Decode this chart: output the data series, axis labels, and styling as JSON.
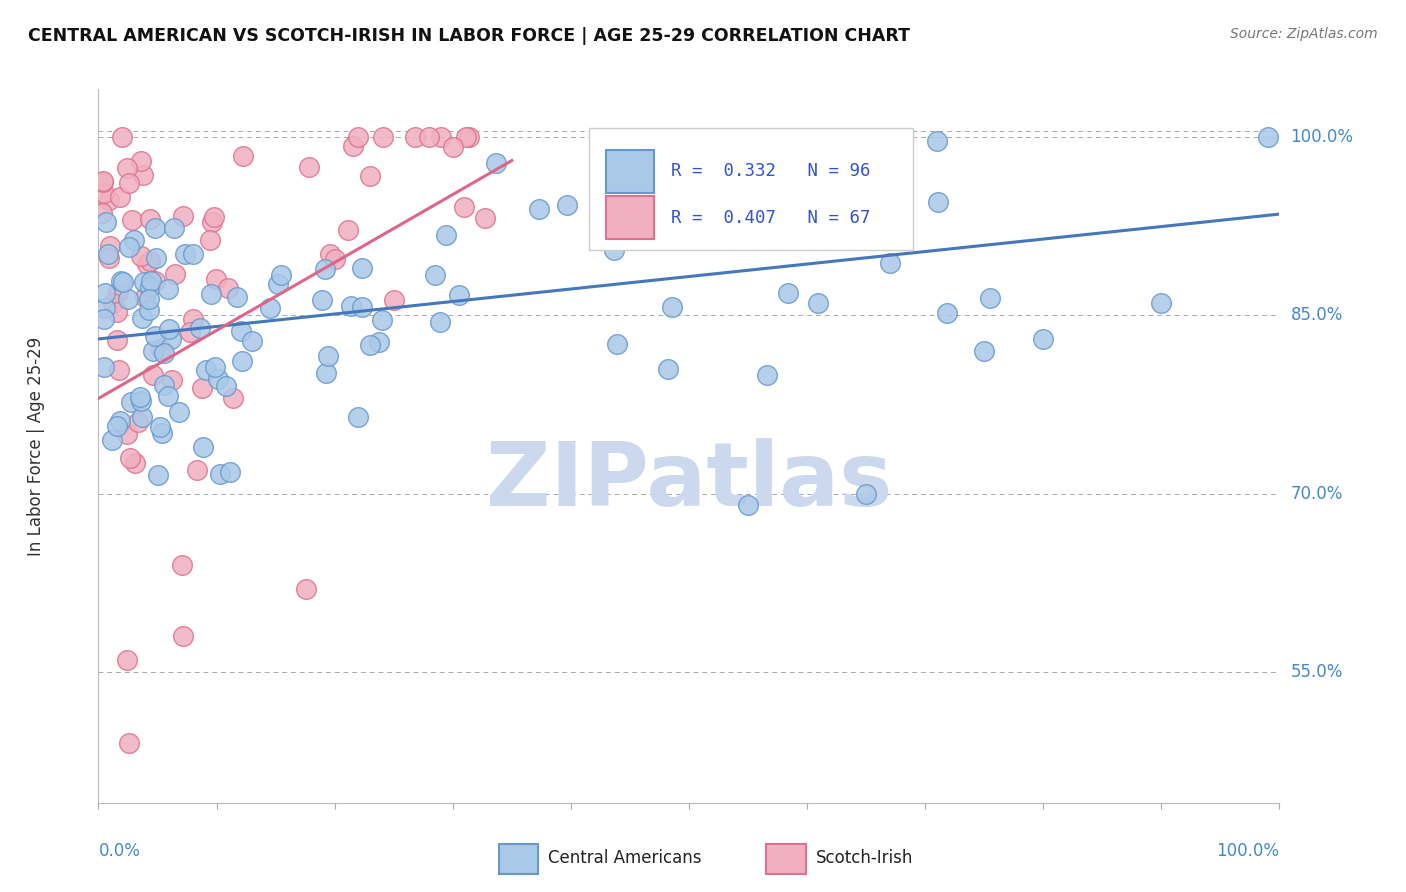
{
  "title": "CENTRAL AMERICAN VS SCOTCH-IRISH IN LABOR FORCE | AGE 25-29 CORRELATION CHART",
  "source": "Source: ZipAtlas.com",
  "ylabel": "In Labor Force | Age 25-29",
  "right_ytick_values": [
    55.0,
    70.0,
    85.0,
    100.0
  ],
  "xlim": [
    0.0,
    100.0
  ],
  "ylim": [
    44.0,
    104.0
  ],
  "blue_R": 0.332,
  "blue_N": 96,
  "pink_R": 0.407,
  "pink_N": 67,
  "blue_color": "#aac8e8",
  "blue_edge": "#6699cc",
  "pink_color": "#f0b0c0",
  "pink_edge": "#e07090",
  "blue_line_color": "#4477bb",
  "pink_line_color": "#dd6688",
  "legend_text_color": "#3355cc",
  "watermark": "ZIPatlas",
  "watermark_color": "#ccd8ee",
  "background_color": "#ffffff",
  "top_dashed_y": 100.5,
  "blue_line_x0": 0,
  "blue_line_y0": 83.0,
  "blue_line_x1": 100,
  "blue_line_y1": 93.5,
  "pink_line_x0": 0,
  "pink_line_y0": 78.0,
  "pink_line_x1": 35,
  "pink_line_y1": 98.0
}
